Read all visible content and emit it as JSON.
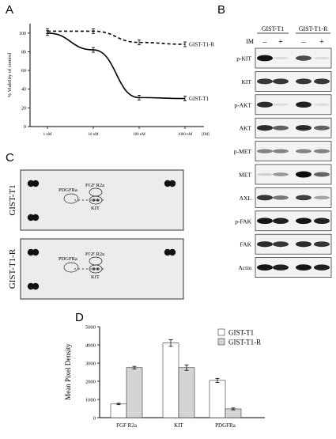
{
  "panels": {
    "a": "A",
    "b": "B",
    "c": "C",
    "d": "D"
  },
  "chart_data": [
    {
      "panel": "A",
      "type": "line",
      "ylabel": "% Viability of control",
      "xlabel": "",
      "x_ticks": [
        "1 nM",
        "10 nM",
        "100 nM",
        "1000 nM",
        "[IM]"
      ],
      "y_ticks": [
        0,
        20,
        40,
        60,
        80,
        100
      ],
      "ylim": [
        0,
        110
      ],
      "x_scale": "log",
      "x": [
        1,
        10,
        100,
        1000
      ],
      "grid": false,
      "series": [
        {
          "name": "GIST-T1-R",
          "style": "dashed",
          "values": [
            102,
            102,
            90,
            88
          ]
        },
        {
          "name": "GIST-T1",
          "style": "solid",
          "values": [
            100,
            82,
            31,
            30
          ]
        }
      ]
    },
    {
      "panel": "D",
      "type": "bar",
      "ylabel": "Mean Pixel Density",
      "categories": [
        "FGF R2a",
        "KIT",
        "PDGFRa"
      ],
      "y_ticks": [
        0,
        1000,
        2000,
        3000,
        4000,
        5000
      ],
      "ylim": [
        0,
        5000
      ],
      "legend": "top-right",
      "grid": false,
      "series": [
        {
          "name": "GIST-T1",
          "color": "#ffffff",
          "values": [
            750,
            4100,
            2050
          ],
          "errors": [
            40,
            180,
            110
          ]
        },
        {
          "name": "GIST-T1-R",
          "color": "#d4d4d4",
          "values": [
            2750,
            2750,
            480
          ],
          "errors": [
            70,
            150,
            50
          ]
        }
      ]
    }
  ],
  "western": {
    "cell_lines": [
      "GIST-T1",
      "GIST-T1-R"
    ],
    "treatment_label": "IM",
    "lane_signs": [
      "–",
      "+",
      "–",
      "+"
    ],
    "bands": [
      {
        "label": "p-KIT",
        "lanes": [
          0.95,
          0.05,
          0.7,
          0.05
        ]
      },
      {
        "label": "KIT",
        "lanes": [
          0.8,
          0.8,
          0.8,
          0.8
        ]
      },
      {
        "label": "p-AKT",
        "lanes": [
          0.85,
          0.05,
          0.9,
          0.05
        ]
      },
      {
        "label": "AKT",
        "lanes": [
          0.85,
          0.6,
          0.85,
          0.6
        ]
      },
      {
        "label": "p-MET",
        "lanes": [
          0.45,
          0.45,
          0.45,
          0.45
        ]
      },
      {
        "label": "MET",
        "lanes": [
          0.1,
          0.35,
          1.0,
          0.6
        ]
      },
      {
        "label": "AXL",
        "lanes": [
          0.8,
          0.5,
          0.75,
          0.3
        ]
      },
      {
        "label": "p-FAK",
        "lanes": [
          0.95,
          0.9,
          0.95,
          0.9
        ]
      },
      {
        "label": "FAK",
        "lanes": [
          0.85,
          0.8,
          0.85,
          0.8
        ]
      },
      {
        "label": "Actin",
        "lanes": [
          0.95,
          0.9,
          0.95,
          0.9
        ]
      }
    ]
  },
  "array": {
    "blots": [
      {
        "label": "GIST-T1",
        "spot_labels": [
          "PDGFRa",
          "FGF R2a",
          "KIT"
        ]
      },
      {
        "label": "GIST-T1-R",
        "spot_labels": [
          "PDGFRa",
          "FGF R2a",
          "KIT"
        ]
      }
    ]
  }
}
